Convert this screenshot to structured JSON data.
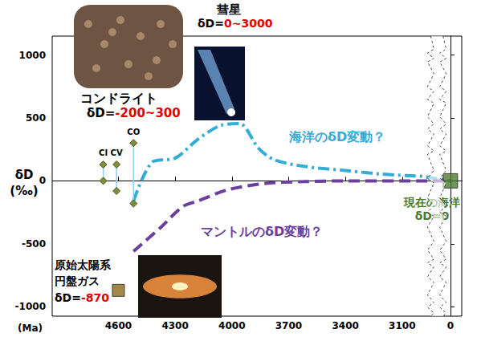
{
  "chart_data": {
    "type": "line",
    "x_label": "(Ma)",
    "y_label": "δD\n(‰)",
    "xlim": [
      -60,
      4950
    ],
    "xticks": [
      4600,
      4300,
      4000,
      3700,
      3400,
      3100,
      0
    ],
    "xbreak": [
      40,
      2950
    ],
    "ylim": [
      -1075,
      1150
    ],
    "yticks": [
      -1000,
      -500,
      0,
      500,
      1000
    ],
    "grid": false,
    "annotations": [
      {
        "title": "コンドライト",
        "text": "δD=-200~300"
      },
      {
        "title": "彗星",
        "text": "δD=0~3000"
      }
    ],
    "series": [
      {
        "name": "CI",
        "type": "line",
        "marker": "diamond",
        "line_style": "solid",
        "color": "#7f8f3a",
        "x": [
          4680,
          4680
        ],
        "values": [
          130,
          0
        ]
      },
      {
        "name": "CV",
        "type": "line",
        "marker": "diamond",
        "line_style": "solid",
        "color": "#7f8f3a",
        "x": [
          4610,
          4610
        ],
        "values": [
          130,
          -80
        ]
      },
      {
        "name": "CO",
        "type": "line",
        "marker": "diamond",
        "line_style": "solid",
        "color": "#7f8f3a",
        "x": [
          4520,
          4520
        ],
        "values": [
          300,
          -180
        ]
      },
      {
        "name": "海洋のδD変動？",
        "type": "line",
        "marker": "none",
        "line_style": "dashdot",
        "color": "#33acd6",
        "x": [
          4520,
          4420,
          4300,
          4180,
          4060,
          3960,
          3860,
          3780,
          3620,
          3420,
          3220,
          3060,
          2990,
          0
        ],
        "values": [
          -160,
          150,
          180,
          330,
          440,
          455,
          260,
          170,
          115,
          85,
          55,
          40,
          35,
          0
        ]
      },
      {
        "name": "マントルのδD変動？",
        "type": "line",
        "marker": "none",
        "line_style": "dashed",
        "color": "#6b3f9e",
        "x": [
          4520,
          4380,
          4260,
          4180,
          4020,
          3820,
          3620,
          3380,
          3100,
          2990,
          0
        ],
        "values": [
          -560,
          -375,
          -205,
          -160,
          -70,
          -20,
          -6,
          0,
          0,
          0,
          0
        ]
      },
      {
        "name": "原始太陽系\n円盤ガス",
        "type": "scatter",
        "marker": "square",
        "color": "#8b6a1c",
        "x": [
          4600
        ],
        "values": [
          -870
        ],
        "value_labels": [
          "δD=-870"
        ]
      },
      {
        "name": "現在の海洋",
        "type": "scatter",
        "marker": "square",
        "color": "#4e7a2e",
        "x": [
          0
        ],
        "values": [
          0
        ],
        "value_labels": [
          "δD=0"
        ]
      }
    ]
  }
}
